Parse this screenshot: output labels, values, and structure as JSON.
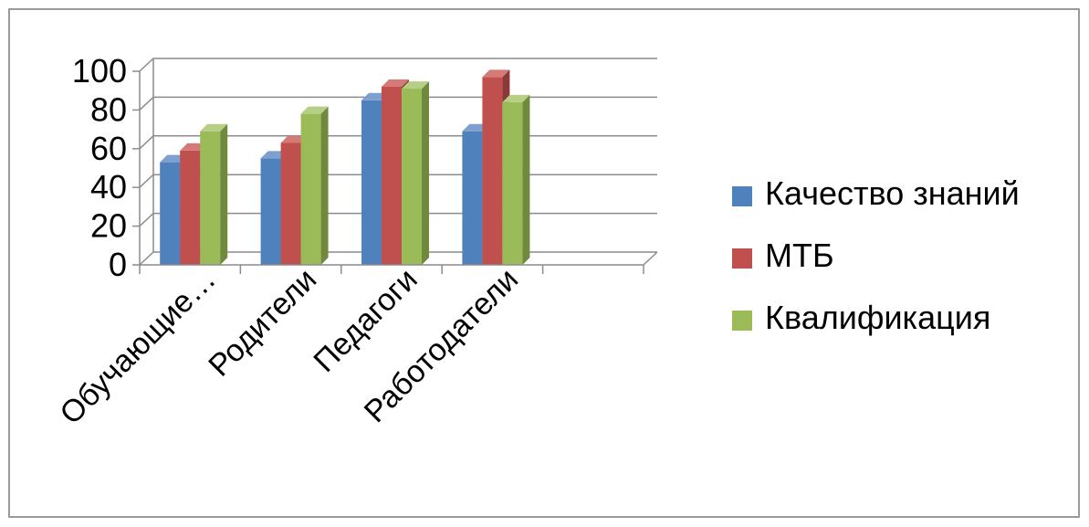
{
  "chart_data": {
    "type": "bar",
    "title": "",
    "xlabel": "",
    "ylabel": "",
    "categories": [
      "Обучающие…",
      "Родители",
      "Педагоги",
      "Работодатели",
      ""
    ],
    "series": [
      {
        "name": "Качество знаний",
        "values": [
          53,
          55,
          85,
          69,
          null
        ],
        "color": "#4f81bd",
        "side": "#385d8a",
        "top": "#7da0cf"
      },
      {
        "name": "МТБ",
        "values": [
          59,
          63,
          92,
          97,
          null
        ],
        "color": "#c0504d",
        "side": "#8c3836",
        "top": "#d47b79"
      },
      {
        "name": "Квалификация",
        "values": [
          69,
          78,
          91,
          84,
          null
        ],
        "color": "#9bbb59",
        "side": "#71893f",
        "top": "#b7cf85"
      }
    ],
    "ylim": [
      0,
      100
    ],
    "yticks": [
      0,
      20,
      40,
      60,
      80,
      100
    ],
    "grid": true,
    "legend": "right",
    "style": "3d-clustered-column"
  }
}
